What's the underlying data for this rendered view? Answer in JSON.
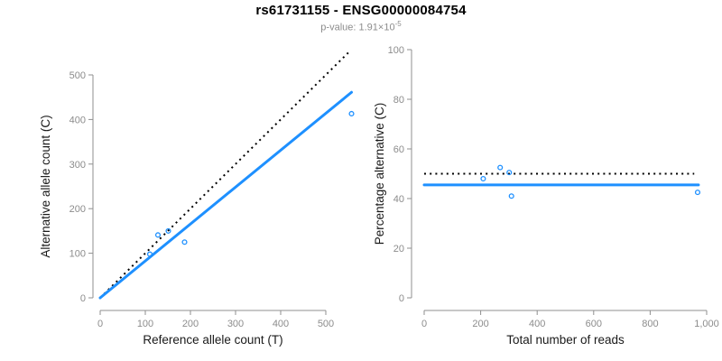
{
  "header": {
    "title": "rs61731155 - ENSG00000084754",
    "p_label": "p-value: ",
    "p_base": "1.91×10",
    "p_exponent": "-5"
  },
  "colors": {
    "accent_blue": "#1E90FF",
    "dotted_black": "#000000",
    "axis_gray": "#8f8f8f",
    "tick_label_gray": "#8c8c8c",
    "axis_label_dark": "#1a1a1a"
  },
  "chart_data": [
    {
      "type": "scatter",
      "name": "allele-counts-plot",
      "xlabel": "Reference allele count (T)",
      "ylabel": "Alternative allele count (C)",
      "xlim": [
        0,
        560
      ],
      "ylim": [
        0,
        560
      ],
      "grid": false,
      "xticks": [
        0,
        100,
        200,
        300,
        400,
        500
      ],
      "xtick_labels": [
        "0",
        "100",
        "200",
        "300",
        "400",
        "500"
      ],
      "yticks": [
        0,
        100,
        200,
        300,
        400,
        500
      ],
      "ytick_labels": [
        "0",
        "100",
        "200",
        "300",
        "400",
        "500"
      ],
      "points": [
        [
          110,
          98
        ],
        [
          128,
          141
        ],
        [
          151,
          150
        ],
        [
          187,
          125
        ],
        [
          557,
          413
        ]
      ],
      "lines": [
        {
          "name": "identity-line",
          "style": "dotted",
          "color": "#000000",
          "x1": 0,
          "y1": 0,
          "x2": 555,
          "y2": 555
        },
        {
          "name": "regression-line",
          "style": "solid",
          "color": "#1E90FF",
          "x1": 0,
          "y1": 0,
          "x2": 557,
          "y2": 461
        }
      ]
    },
    {
      "type": "scatter",
      "name": "percentage-alternative-plot",
      "xlabel": "Total number of reads",
      "ylabel": "Percentage alternative (C)",
      "xlim": [
        0,
        1000
      ],
      "ylim": [
        0,
        100
      ],
      "grid": false,
      "xticks": [
        0,
        200,
        400,
        600,
        800,
        1000
      ],
      "xtick_labels": [
        "0",
        "200",
        "400",
        "600",
        "800",
        "1,000"
      ],
      "yticks": [
        0,
        20,
        40,
        60,
        80,
        100
      ],
      "ytick_labels": [
        "0",
        "20",
        "40",
        "60",
        "80",
        "100"
      ],
      "points": [
        [
          209,
          48
        ],
        [
          269,
          52.5
        ],
        [
          301,
          50.5
        ],
        [
          309,
          41
        ],
        [
          968,
          42.5
        ]
      ],
      "lines": [
        {
          "name": "expected-50pct-line",
          "style": "dotted",
          "color": "#000000",
          "x1": 0,
          "y1": 50,
          "x2": 956,
          "y2": 50
        },
        {
          "name": "mean-percentage-line",
          "style": "solid",
          "color": "#1E90FF",
          "x1": 0,
          "y1": 45.5,
          "x2": 971,
          "y2": 45.5
        }
      ]
    }
  ]
}
